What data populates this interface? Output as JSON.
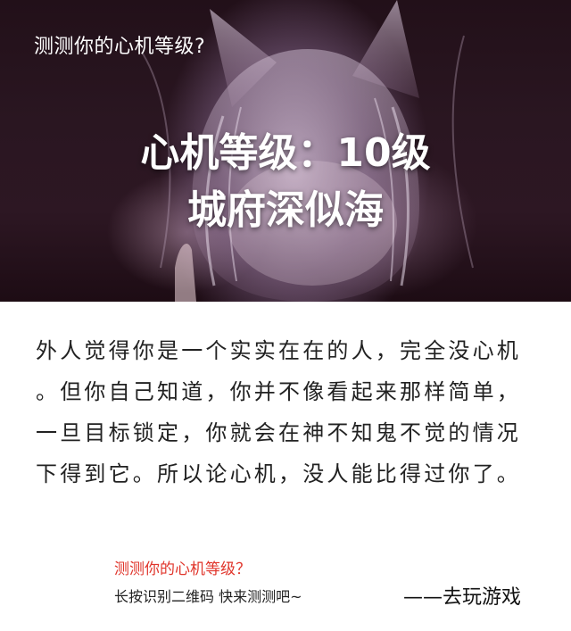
{
  "hero": {
    "small_title": "测测你的心机等级?",
    "result_line1": "心机等级：10级",
    "result_line2": "城府深似海"
  },
  "description": {
    "line1": "外人觉得你是一个实实在在的人，完全没心机",
    "line2": "。但你自己知道，你并不像看起来那样简单，",
    "line3": "一旦目标锁定，你就会在神不知鬼不觉的情况",
    "line4": "下得到它。所以论心机，没人能比得过你了。"
  },
  "footer": {
    "question": "测测你的心机等级？",
    "instruction": "长按识别二维码  快来测测吧~",
    "action": "——去玩游戏"
  },
  "colors": {
    "accent_red": "#e0352b",
    "hero_bg": "#2a1621",
    "text_dark": "#222222"
  }
}
